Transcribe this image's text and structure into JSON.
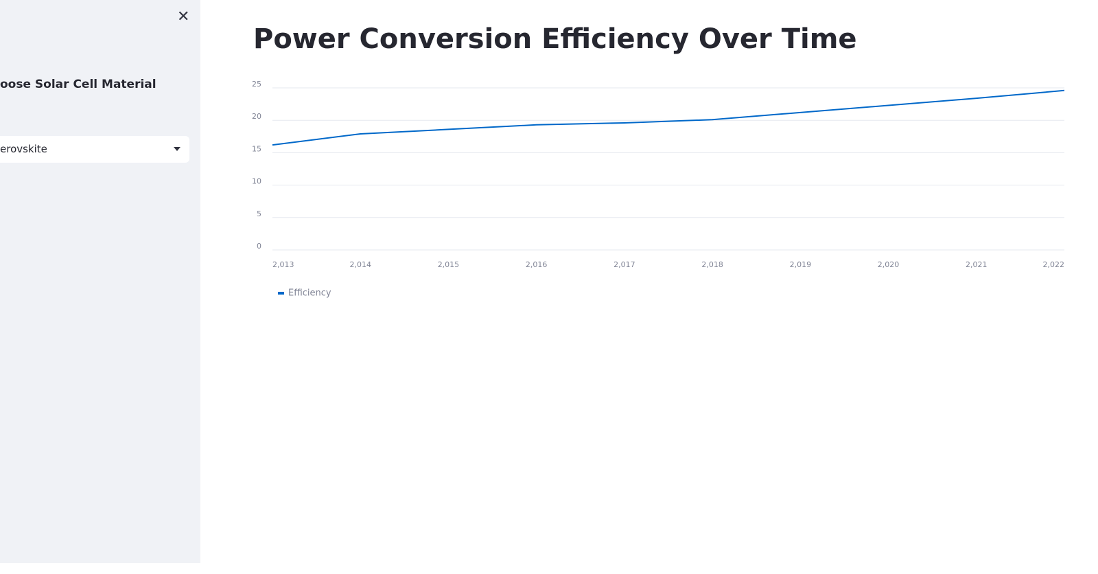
{
  "sidebar": {
    "label": "oose Solar Cell Material",
    "select_value": "erovskite"
  },
  "chart_data": {
    "type": "line",
    "title": "Power Conversion Efficiency Over Time",
    "x": [
      2013,
      2014,
      2015,
      2016,
      2017,
      2018,
      2019,
      2020,
      2021,
      2022
    ],
    "series": [
      {
        "name": "Efficiency",
        "color": "#0068c9",
        "values": [
          16.2,
          17.9,
          18.6,
          19.3,
          19.6,
          20.1,
          21.2,
          22.3,
          23.4,
          24.6
        ]
      }
    ],
    "xlim": [
      2013,
      2022
    ],
    "xticks": [
      {
        "value": 2013,
        "label": "2,013"
      },
      {
        "value": 2014,
        "label": "2,014"
      },
      {
        "value": 2015,
        "label": "2,015"
      },
      {
        "value": 2016,
        "label": "2,016"
      },
      {
        "value": 2017,
        "label": "2,017"
      },
      {
        "value": 2018,
        "label": "2,018"
      },
      {
        "value": 2019,
        "label": "2,019"
      },
      {
        "value": 2020,
        "label": "2,020"
      },
      {
        "value": 2021,
        "label": "2,021"
      },
      {
        "value": 2022,
        "label": "2,022"
      }
    ],
    "ylim": [
      0,
      25
    ],
    "yticks": [
      0,
      5,
      10,
      15,
      20,
      25
    ],
    "grid": true,
    "legend": "bottom-left"
  }
}
